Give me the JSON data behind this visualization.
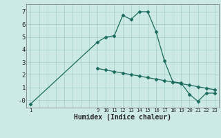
{
  "xlabel": "Humidex (Indice chaleur)",
  "bg_color": "#cce9e5",
  "line_color": "#1a6b5e",
  "grid_color": "#aad4ce",
  "x_main": [
    1,
    9,
    10,
    11,
    12,
    13,
    14,
    15,
    16,
    17,
    18,
    19,
    20,
    21,
    22,
    23
  ],
  "y_main": [
    -0.3,
    4.6,
    5.0,
    5.1,
    6.7,
    6.4,
    7.0,
    7.0,
    5.4,
    3.1,
    1.45,
    1.35,
    0.45,
    -0.1,
    0.55,
    0.55
  ],
  "x_ref": [
    9,
    10,
    11,
    12,
    13,
    14,
    15,
    16,
    17,
    18,
    19,
    20,
    21,
    22,
    23
  ],
  "y_ref": [
    2.5,
    2.38,
    2.26,
    2.14,
    2.02,
    1.9,
    1.78,
    1.66,
    1.54,
    1.42,
    1.3,
    1.18,
    1.06,
    0.94,
    0.82
  ],
  "xlim": [
    0.5,
    23.5
  ],
  "ylim": [
    -0.6,
    7.6
  ],
  "yticks": [
    0,
    1,
    2,
    3,
    4,
    5,
    6,
    7
  ],
  "ytick_labels": [
    "-0",
    "1",
    "2",
    "3",
    "4",
    "5",
    "6",
    "7"
  ],
  "markersize": 2.5,
  "linewidth": 0.9
}
